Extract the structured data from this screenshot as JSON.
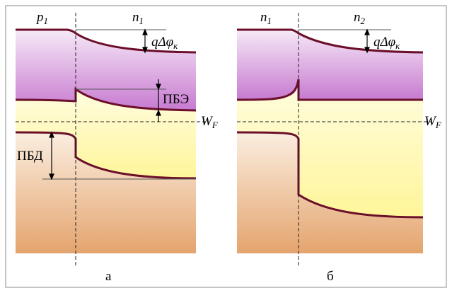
{
  "panel_a": {
    "region_left": "p",
    "region_left_sub": "1",
    "region_right": "n",
    "region_right_sub": "1",
    "barrier_label": "qΔφ",
    "barrier_sub": "к",
    "pbe_label": "ПБЭ",
    "pbd_label": "ПБД",
    "fermi_label": "W",
    "fermi_sub": "F",
    "caption": "а"
  },
  "panel_b": {
    "region_left": "n",
    "region_left_sub": "1",
    "region_right": "n",
    "region_right_sub": "2",
    "barrier_label": "qΔφ",
    "barrier_sub": "к",
    "fermi_label": "W",
    "fermi_sub": "F",
    "caption": "б"
  },
  "colors": {
    "band_edge": "#6b0f2a",
    "conduction_band": "#c77ad0",
    "gap": "#fff9b0",
    "valence_band": "#e8a872",
    "frame": "#888888"
  }
}
